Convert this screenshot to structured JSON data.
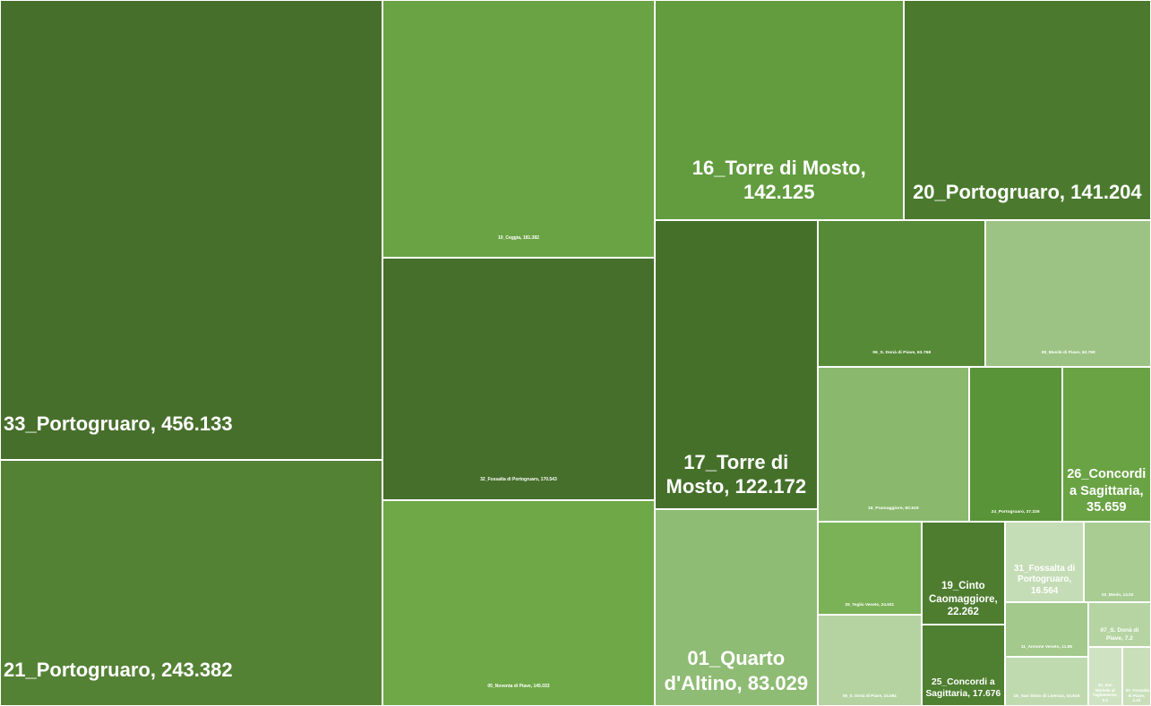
{
  "chart_data": {
    "type": "treemap",
    "separator": ", ",
    "items": [
      {
        "name": "33_Portogruaro",
        "value": 456.133,
        "color": "#476f2c"
      },
      {
        "name": "21_Portogruaro",
        "value": 243.382,
        "color": "#548235"
      },
      {
        "name": "10_Ceggia",
        "value": 181.382,
        "color": "#6aa344"
      },
      {
        "name": "32_Fossalta di Portogruaro",
        "value": 170.543,
        "color": "#466f2b"
      },
      {
        "name": "05_Noventa di Piave",
        "value": 145.033,
        "color": "#6ea847"
      },
      {
        "name": "16_Torre di Mosto",
        "value": 142.125,
        "color": "#629c3f"
      },
      {
        "name": "20_Portogruaro",
        "value": 141.204,
        "color": "#4b7a2e"
      },
      {
        "name": "17_Torre di Mosto",
        "value": 122.172,
        "color": "#45702a"
      },
      {
        "name": "01_Quarto d'Altino",
        "value": 83.029,
        "color": "#8fbc74"
      },
      {
        "name": "06_S. Donà di Piave",
        "value": 63.768,
        "color": "#568a36"
      },
      {
        "name": "09_Musile di Piave",
        "value": 62.769,
        "color": "#9cc384"
      },
      {
        "name": "18_Pramaggiore",
        "value": 60.519,
        "color": "#8ab96d"
      },
      {
        "name": "24_Portogruaro",
        "value": 37.226,
        "color": "#5a9438"
      },
      {
        "name": "26_Concordi a Sagittaria",
        "value": 35.659,
        "color": "#6aa344"
      },
      {
        "name": "29_Teglio Veneto",
        "value": 24.931,
        "color": "#7cb257"
      },
      {
        "name": "08_S. Donà di Piave",
        "value": 24.584,
        "color": "#b4d3a1"
      },
      {
        "name": "19_Cinto Caomaggiore",
        "value": 22.262,
        "color": "#4e7d30"
      },
      {
        "name": "25_Concordi a Sagittaria",
        "value": 17.676,
        "color": "#4f7f30"
      },
      {
        "name": "31_Fossalta di Portogruaro",
        "value": 16.564,
        "color": "#c5ddb6"
      },
      {
        "name": "02_Meolo",
        "value": 14.03,
        "color": "#a8cc92"
      },
      {
        "name": "11_Annone Veneto",
        "value": 11.65,
        "color": "#a3c98c"
      },
      {
        "name": "15_San Stino di Livenza",
        "value": 10.616,
        "color": "#c0dab0"
      },
      {
        "name": "07_S. Donà di Piave",
        "value": 7.2,
        "color": "#b5d4a2"
      },
      {
        "name": "34_San Michele al Tagliamento",
        "value": 5.2,
        "color": "#cfe3c2"
      },
      {
        "name": "03_Fossalta di Piave",
        "value": 4.43,
        "color": "#c8dfba"
      }
    ]
  }
}
